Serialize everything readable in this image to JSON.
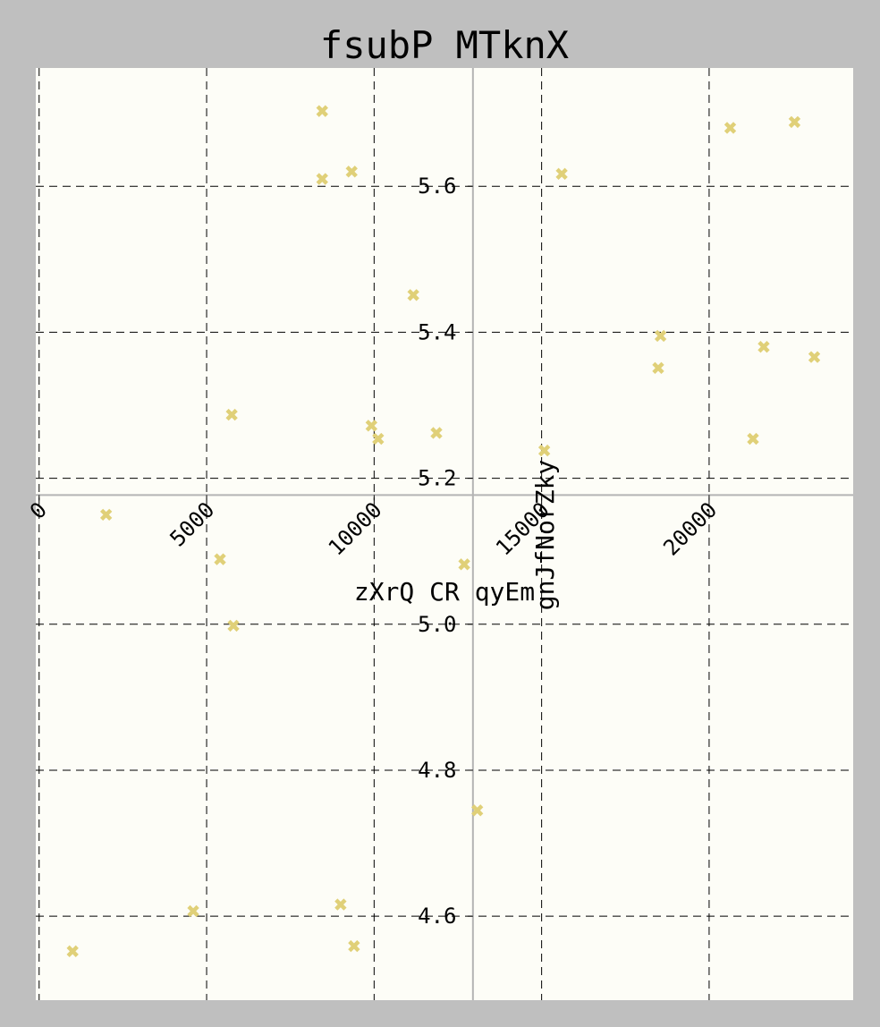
{
  "chart_data": {
    "type": "scatter",
    "title": "fsubP MTknX",
    "xlabel": "zXrQ CR qyEm",
    "ylabel": "gnJfNorZky",
    "xlim": [
      -100,
      24300
    ],
    "ylim": [
      4.485,
      5.762
    ],
    "x_ticks": [
      0,
      5000,
      10000,
      15000,
      20000
    ],
    "x_tick_labels": [
      "0",
      "5000",
      "10000",
      "15000",
      "20000"
    ],
    "y_ticks": [
      4.6,
      4.8,
      5.0,
      5.2,
      5.4,
      5.6
    ],
    "y_tick_labels": [
      "4.6",
      "4.8",
      "5.0",
      "5.2",
      "5.4",
      "5.6"
    ],
    "x_axis_at_y": 5.177,
    "y_axis_at_x": 12950,
    "grid": true,
    "colors": {
      "background": "#bfbfbf",
      "plot_background": "#fdfdf7",
      "marker": "#e0d078",
      "grid": "#000000",
      "spines": "#b4b4b4"
    },
    "series": [
      {
        "marker": "x",
        "x": [
          1000,
          2000,
          4600,
          5400,
          5800,
          5750,
          8450,
          8450,
          9330,
          9000,
          9400,
          9920,
          10120,
          11170,
          11860,
          12690,
          13080,
          15080,
          15600,
          18480,
          18550,
          20630,
          21310,
          21630,
          22550,
          23140
        ],
        "y": [
          4.552,
          5.15,
          4.607,
          5.089,
          4.998,
          5.287,
          5.703,
          5.61,
          5.62,
          4.616,
          4.559,
          5.272,
          5.254,
          5.451,
          5.262,
          5.082,
          4.745,
          5.238,
          5.617,
          5.351,
          5.395,
          5.68,
          5.254,
          5.38,
          5.688,
          5.366
        ]
      }
    ]
  }
}
